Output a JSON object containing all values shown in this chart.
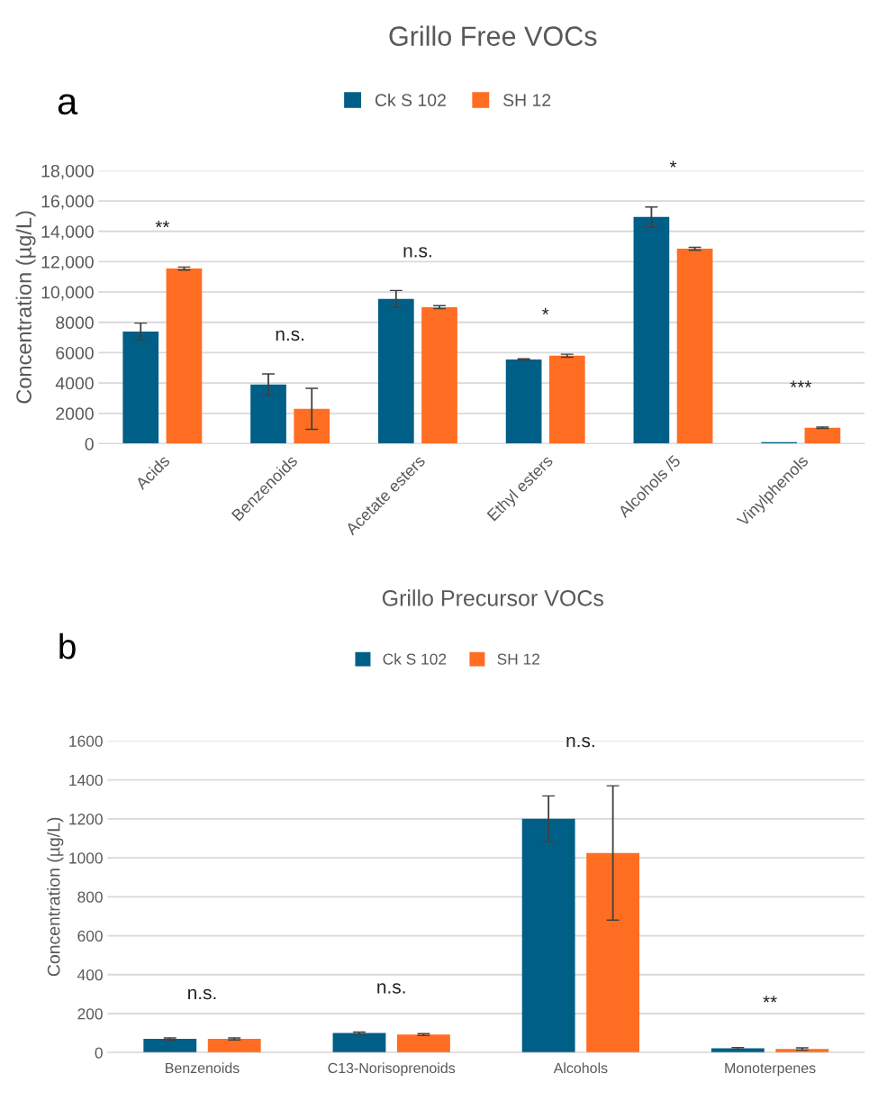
{
  "chart_data": [
    {
      "type": "bar",
      "title": "Grillo Free VOCs",
      "ylabel": "Concentration (µg/L)",
      "categories": [
        "Acids",
        "Benzenoids",
        "Acetate esters",
        "Ethyl esters",
        "Alcohols /5",
        "Vinylphenols"
      ],
      "series": [
        {
          "name": "Ck S 102",
          "color": "#005f86",
          "values": [
            7400,
            3900,
            9550,
            5550,
            14950,
            100
          ],
          "errors": [
            550,
            700,
            550,
            50,
            650,
            null
          ]
        },
        {
          "name": "SH 12",
          "color": "#ff6d22",
          "values": [
            11550,
            2300,
            9000,
            5800,
            12850,
            1050
          ],
          "errors": [
            100,
            1350,
            100,
            100,
            100,
            50
          ]
        }
      ],
      "ylim": [
        0,
        18000
      ],
      "yticks": [
        0,
        2000,
        4000,
        6000,
        8000,
        {
          "value": 10000,
          "label": "10,000"
        },
        {
          "value": 12000,
          "label": "12,000"
        },
        {
          "value": 14000,
          "label": "14,000"
        },
        {
          "value": 16000,
          "label": "16,000"
        },
        {
          "value": 18000,
          "label": "18,000"
        }
      ],
      "grid": "y",
      "legend": "top",
      "annotations": [
        "a",
        "**",
        "n.s.",
        "n.s.",
        "*",
        "*",
        "***"
      ]
    },
    {
      "type": "bar",
      "title": "Grillo Precursor VOCs",
      "ylabel": "Concentration (µg/L)",
      "categories": [
        "Benzenoids",
        "C13-Norisoprenoids",
        "Alcohols",
        "Monoterpenes"
      ],
      "series": [
        {
          "name": "Ck S 102",
          "color": "#005f86",
          "values": [
            70,
            100,
            1200,
            22
          ],
          "errors": [
            5,
            5,
            118,
            4
          ]
        },
        {
          "name": "SH 12",
          "color": "#ff6d22",
          "values": [
            70,
            92,
            1025,
            18
          ],
          "errors": [
            5,
            5,
            345,
            6
          ]
        }
      ],
      "ylim": [
        0,
        1600
      ],
      "yticks": [
        0,
        200,
        400,
        600,
        800,
        1000,
        1200,
        1400,
        1600
      ],
      "grid": "y",
      "legend": "top",
      "annotations": [
        "b",
        "n.s.",
        "n.s.",
        "n.s.",
        "**"
      ]
    }
  ]
}
